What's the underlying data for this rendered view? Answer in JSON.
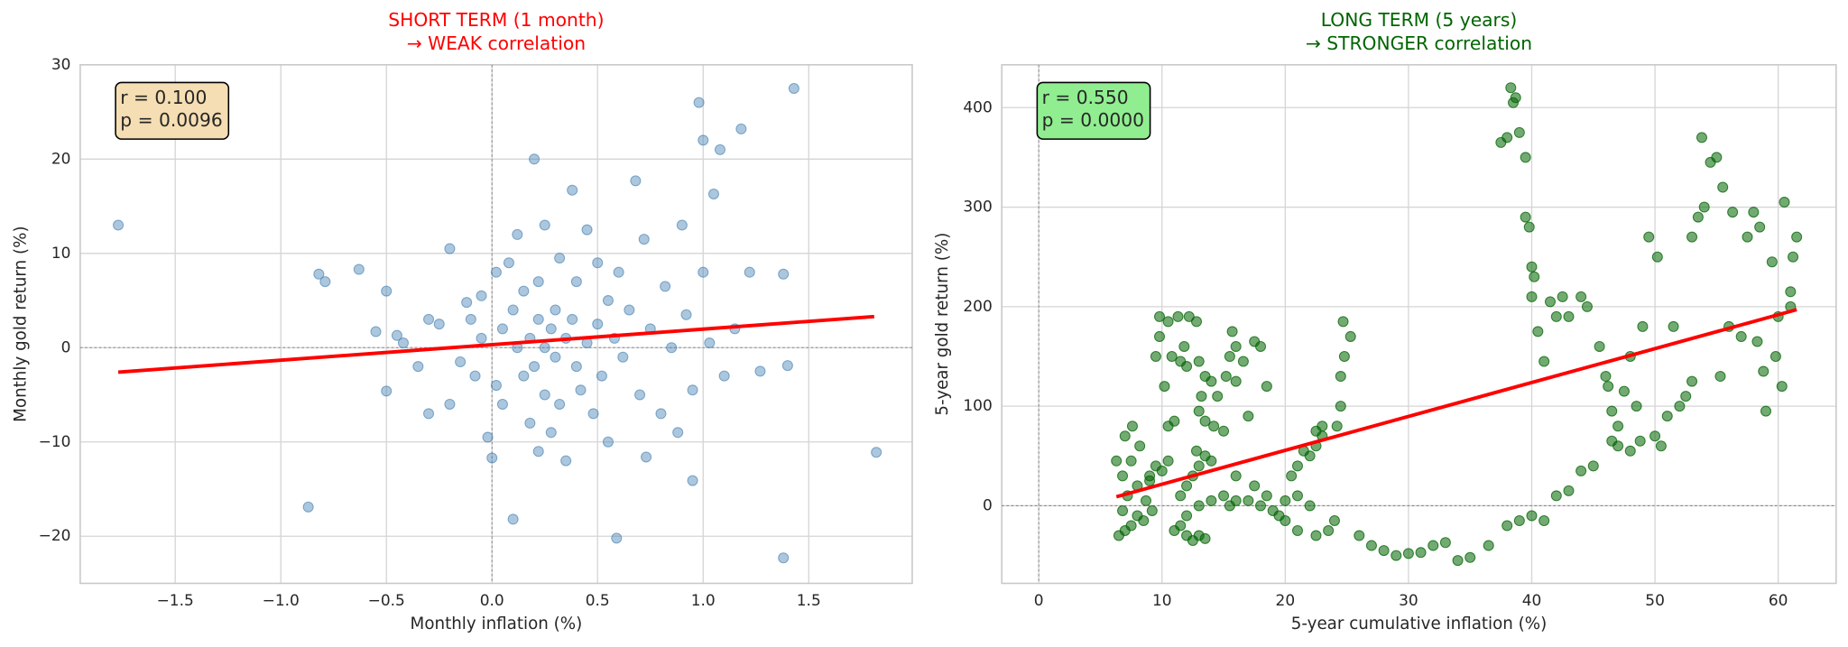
{
  "chart_data": [
    {
      "type": "scatter",
      "title": [
        "SHORT TERM (1 month)",
        "→ WEAK correlation"
      ],
      "title_color": "#ff0000",
      "x_label": "Monthly inflation (%)",
      "y_label": "Monthly gold return (%)",
      "xlim": [
        -1.95,
        1.99
      ],
      "ylim": [
        -25,
        30
      ],
      "xticks": [
        {
          "value": -1.5,
          "label": "−1.5"
        },
        {
          "value": -1.0,
          "label": "−1.0"
        },
        {
          "value": -0.5,
          "label": "−0.5"
        },
        {
          "value": 0.0,
          "label": "0.0"
        },
        {
          "value": 0.5,
          "label": "0.5"
        },
        {
          "value": 1.0,
          "label": "1.0"
        },
        {
          "value": 1.5,
          "label": "1.5"
        }
      ],
      "yticks": [
        {
          "value": -20,
          "label": "−20"
        },
        {
          "value": -10,
          "label": "−10"
        },
        0,
        10,
        20,
        30
      ],
      "grid": true,
      "ref_lines": {
        "x": 0,
        "y": 0
      },
      "color": "#4682b4",
      "opacity": 0.45,
      "x": [
        -1.77,
        -0.87,
        -0.82,
        -0.79,
        -0.63,
        -0.55,
        -0.5,
        -0.5,
        -0.45,
        -0.42,
        -0.35,
        -0.3,
        -0.3,
        -0.25,
        -0.2,
        -0.2,
        -0.15,
        -0.12,
        -0.1,
        -0.08,
        -0.05,
        -0.05,
        -0.02,
        0.0,
        0.02,
        0.02,
        0.05,
        0.05,
        0.08,
        0.1,
        0.1,
        0.12,
        0.12,
        0.15,
        0.15,
        0.18,
        0.18,
        0.2,
        0.2,
        0.22,
        0.22,
        0.22,
        0.25,
        0.25,
        0.25,
        0.28,
        0.28,
        0.3,
        0.3,
        0.32,
        0.32,
        0.35,
        0.35,
        0.38,
        0.38,
        0.4,
        0.4,
        0.42,
        0.45,
        0.45,
        0.48,
        0.5,
        0.5,
        0.52,
        0.55,
        0.55,
        0.58,
        0.59,
        0.6,
        0.62,
        0.65,
        0.68,
        0.7,
        0.72,
        0.73,
        0.75,
        0.8,
        0.82,
        0.85,
        0.88,
        0.9,
        0.92,
        0.95,
        0.95,
        0.98,
        1.0,
        1.0,
        1.03,
        1.05,
        1.08,
        1.1,
        1.15,
        1.18,
        1.22,
        1.27,
        1.38,
        1.38,
        1.4,
        1.43,
        1.82
      ],
      "values": [
        13,
        -16.9,
        7.8,
        7,
        8.3,
        1.7,
        6,
        -4.6,
        1.3,
        0.5,
        -2,
        3,
        -7,
        2.5,
        10.5,
        -6,
        -1.5,
        4.8,
        3,
        -3,
        5.5,
        1,
        -9.5,
        -11.7,
        8,
        -4,
        2,
        -6,
        9,
        -18.2,
        4,
        0,
        12,
        -3,
        6,
        1,
        -8,
        20,
        -2,
        3,
        -11,
        7,
        0,
        13,
        -5,
        2,
        -9,
        4,
        -1,
        9.5,
        -6,
        1,
        -12,
        3,
        16.7,
        -2,
        7,
        -4.5,
        0.5,
        12.5,
        -7,
        2.5,
        9,
        -3,
        5,
        -10,
        1,
        -20.2,
        8,
        -1,
        4,
        17.7,
        -5,
        11.5,
        -11.6,
        2,
        -7,
        6.5,
        0,
        -9,
        13,
        3.5,
        -14.1,
        -4.5,
        26,
        22,
        8,
        0.5,
        16.3,
        21,
        -3,
        2,
        23.2,
        8,
        -2.5,
        7.8,
        -22.3,
        -1.9,
        27.5,
        -11.1
      ],
      "fit": {
        "x": [
          -1.77,
          1.81
        ],
        "values": [
          -2.6,
          3.3
        ],
        "color": "#ff0000"
      },
      "annotation": [
        "r = 0.100",
        "p = 0.0096"
      ],
      "annotation_color": "#f5deb3"
    },
    {
      "type": "scatter",
      "title": [
        "LONG TERM (5 years)",
        "→ STRONGER correlation"
      ],
      "title_color": "#006400",
      "x_label": "5-year cumulative inflation (%)",
      "y_label": "5-year gold return (%)",
      "xlim": [
        -3,
        64.7
      ],
      "ylim": [
        -78,
        443
      ],
      "xticks": [
        0,
        10,
        20,
        30,
        40,
        50,
        60
      ],
      "yticks": [
        0,
        100,
        200,
        300,
        400
      ],
      "grid": true,
      "ref_lines": {
        "x": 0,
        "y": 0
      },
      "color": "#006400",
      "opacity": 0.55,
      "x": [
        6.5,
        7,
        7.5,
        8,
        8.5,
        6.8,
        7.2,
        8,
        9,
        9.5,
        7.5,
        8.2,
        7,
        7.6,
        9,
        10,
        10.5,
        9.2,
        8.7,
        6.3,
        6.8,
        10.5,
        11,
        9.8,
        10.5,
        11.3,
        12.2,
        12.8,
        10.8,
        11.5,
        12,
        9.5,
        10.2,
        9.8,
        11.8,
        13,
        13.5,
        14,
        13.2,
        14.5,
        13,
        13.5,
        14.2,
        15,
        15.7,
        15.5,
        16,
        16.6,
        15.2,
        16,
        17.5,
        18,
        18.5,
        17,
        11,
        11.5,
        12,
        12.5,
        13,
        13.5,
        12,
        13,
        14,
        15,
        16,
        15.5,
        12.5,
        13,
        13.5,
        12.8,
        14,
        12,
        11.5,
        17,
        18,
        19,
        20,
        21,
        22,
        18.5,
        19.5,
        20.5,
        21,
        22,
        22.5,
        23,
        23,
        22.5,
        21.5,
        23.5,
        22.5,
        24,
        24.5,
        24.5,
        24.8,
        24.7,
        25.3,
        24.2,
        21,
        20,
        17.5,
        16,
        26,
        27,
        28,
        29,
        30,
        31,
        32,
        33,
        34,
        35,
        36.5,
        38,
        39,
        40,
        41,
        37.5,
        38,
        38.5,
        38.3,
        38.7,
        39.5,
        39,
        39.5,
        39.8,
        40,
        40.2,
        40,
        40.5,
        41,
        41.5,
        42,
        42.5,
        43,
        44,
        44.5,
        42,
        43,
        44,
        45,
        45.5,
        46,
        46.2,
        46.5,
        47,
        47,
        46.5,
        47.5,
        48,
        48,
        48.5,
        48.8,
        49,
        49.5,
        50,
        50.5,
        50.2,
        51,
        51.5,
        52,
        52.5,
        53,
        53,
        53.5,
        53.8,
        54,
        54.5,
        55,
        55.5,
        55.3,
        56,
        56.3,
        57,
        57.5,
        58,
        58.3,
        58.5,
        58.8,
        59,
        59.5,
        60,
        60.5,
        61,
        61.2,
        61.5,
        60.3,
        59.8,
        61
      ],
      "values": [
        -30,
        -25,
        -20,
        -10,
        -15,
        -5,
        10,
        20,
        25,
        40,
        45,
        60,
        70,
        80,
        30,
        35,
        45,
        -5,
        5,
        45,
        30,
        80,
        85,
        190,
        185,
        190,
        190,
        185,
        150,
        145,
        140,
        150,
        120,
        170,
        160,
        145,
        130,
        125,
        110,
        110,
        95,
        85,
        80,
        75,
        175,
        150,
        160,
        145,
        130,
        125,
        165,
        160,
        120,
        90,
        -25,
        -20,
        -30,
        -35,
        -30,
        -33,
        -10,
        0,
        5,
        10,
        5,
        0,
        30,
        40,
        50,
        55,
        45,
        20,
        10,
        5,
        0,
        -5,
        5,
        10,
        0,
        10,
        -10,
        30,
        40,
        50,
        60,
        70,
        80,
        75,
        55,
        -25,
        -30,
        -15,
        100,
        130,
        150,
        185,
        170,
        80,
        -25,
        -15,
        20,
        30,
        -30,
        -40,
        -45,
        -50,
        -48,
        -47,
        -40,
        -37,
        -55,
        -52,
        -40,
        -20,
        -15,
        -10,
        -15,
        365,
        370,
        405,
        420,
        410,
        350,
        375,
        290,
        280,
        240,
        230,
        210,
        175,
        145,
        205,
        190,
        210,
        190,
        210,
        200,
        10,
        15,
        35,
        40,
        160,
        130,
        120,
        95,
        80,
        60,
        65,
        115,
        150,
        55,
        100,
        65,
        180,
        270,
        70,
        60,
        250,
        90,
        180,
        100,
        110,
        125,
        270,
        290,
        370,
        300,
        345,
        350,
        320,
        130,
        180,
        295,
        170,
        270,
        295,
        165,
        280,
        135,
        95,
        245,
        190,
        305,
        200,
        250,
        270,
        120,
        150,
        215
      ],
      "fit": {
        "x": [
          6.3,
          61.5
        ],
        "values": [
          9,
          197
        ],
        "color": "#ff0000"
      },
      "annotation": [
        "r = 0.550",
        "p = 0.0000"
      ],
      "annotation_color": "#90ee90"
    }
  ]
}
